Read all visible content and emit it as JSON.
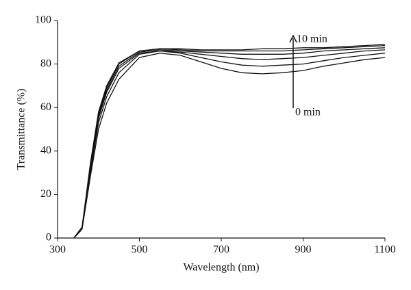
{
  "chart_data": {
    "type": "line",
    "x_label": "Wavelength (nm)",
    "y_label": "Transmittance (%)",
    "x": [
      340,
      360,
      380,
      400,
      420,
      450,
      500,
      550,
      600,
      650,
      700,
      750,
      800,
      850,
      900,
      950,
      1000,
      1050,
      1100
    ],
    "series": [
      {
        "color": "#111111",
        "values": [
          0,
          4,
          28,
          50,
          62,
          73,
          83,
          85,
          84,
          81,
          78,
          76,
          75.5,
          76,
          77,
          79,
          80.5,
          82,
          83
        ]
      },
      {
        "color": "#111111",
        "values": [
          0,
          5,
          30,
          53,
          65,
          76,
          84.5,
          86,
          85,
          83,
          81,
          79.5,
          79,
          79.5,
          80,
          81.5,
          83,
          84,
          85
        ]
      },
      {
        "color": "#111111",
        "values": [
          0,
          5,
          31,
          55,
          67,
          78,
          85,
          86,
          85.5,
          84.5,
          83.5,
          82.5,
          82,
          82.5,
          83,
          84,
          85,
          86,
          86.5
        ]
      },
      {
        "color": "#111111",
        "values": [
          0,
          5,
          32,
          56,
          68,
          79,
          85.5,
          86.5,
          86,
          85.5,
          85,
          84.5,
          84.5,
          84.5,
          85,
          86,
          86.5,
          87,
          87.5
        ]
      },
      {
        "color": "#111111",
        "values": [
          0,
          5,
          33,
          57,
          69,
          80,
          86,
          87,
          86.5,
          86,
          86,
          86,
          86,
          86,
          86.5,
          87,
          87.5,
          88,
          88.5
        ]
      },
      {
        "color": "#111111",
        "values": [
          0,
          5,
          34,
          58,
          70,
          80.5,
          86,
          87,
          87,
          86.5,
          86.5,
          86.5,
          87,
          87,
          87.5,
          87.5,
          88,
          88.5,
          89
        ]
      }
    ],
    "annotations": [
      "10 min",
      "0 min"
    ],
    "xlim": [
      300,
      1100
    ],
    "xticks": [
      300,
      500,
      700,
      900,
      1100
    ],
    "ylim": [
      0,
      100
    ],
    "yticks": [
      0,
      20,
      40,
      60,
      80,
      100
    ],
    "grid": false
  }
}
